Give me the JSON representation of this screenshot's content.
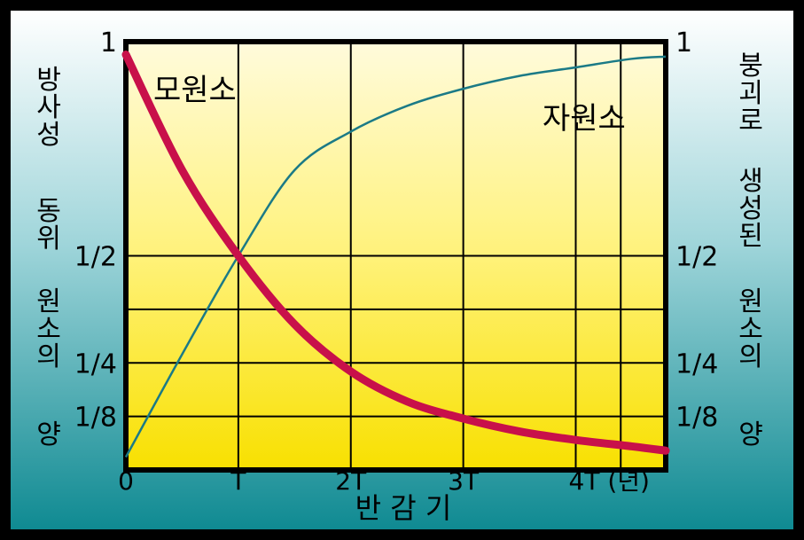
{
  "chart_data": {
    "type": "line",
    "xlabel": "반 감 기",
    "x_ticks": [
      "0",
      "T",
      "2T",
      "3T",
      "4T (년)"
    ],
    "x_tick_values": [
      0,
      1,
      2,
      3,
      4
    ],
    "xlim": [
      0,
      4.8
    ],
    "ylim": [
      0,
      1
    ],
    "y_ticks": [
      "1",
      "1/2",
      "1/4",
      "1/8"
    ],
    "y_tick_values": [
      1,
      0.5,
      0.25,
      0.125
    ],
    "left_axis_label": [
      "방사성",
      "동위",
      "원소의",
      "양"
    ],
    "right_axis_label": [
      "붕괴로",
      "생성된",
      "원소의",
      "양"
    ],
    "series": [
      {
        "name": "모원소",
        "color": "#c8104a",
        "x": [
          0,
          0.5,
          1,
          1.5,
          2,
          2.5,
          3,
          3.5,
          4,
          4.5,
          4.8
        ],
        "y": [
          0.97,
          0.7,
          0.5,
          0.34,
          0.23,
          0.16,
          0.12,
          0.09,
          0.07,
          0.055,
          0.045
        ]
      },
      {
        "name": "자원소",
        "color": "#1b7a86",
        "x": [
          0,
          0.5,
          1,
          1.5,
          2,
          2.5,
          3,
          3.5,
          4,
          4.5,
          4.8
        ],
        "y": [
          0.03,
          0.27,
          0.5,
          0.7,
          0.79,
          0.85,
          0.89,
          0.92,
          0.94,
          0.96,
          0.965
        ]
      }
    ]
  },
  "colors": {
    "frame": "#000000",
    "background_top": "#ffffff",
    "background_bottom": "#0f8a92",
    "plot_top": "#fffbdc",
    "plot_bottom": "#f8e000",
    "grid": "#000000"
  }
}
